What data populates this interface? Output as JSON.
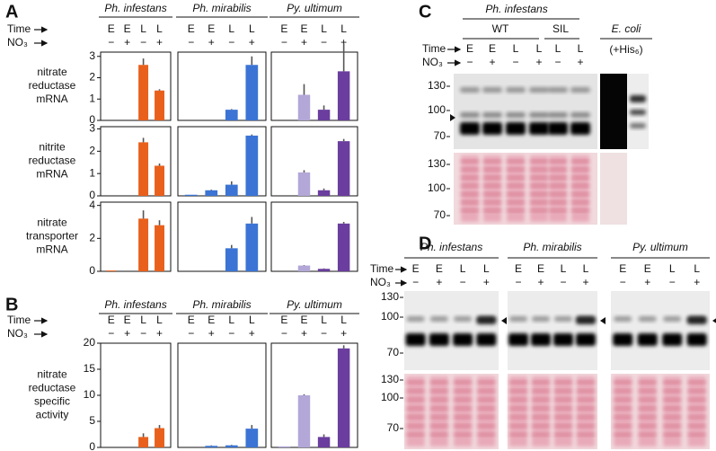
{
  "panel_a": {
    "label": "A",
    "time_label": "Time",
    "no3_label": "NO₃",
    "species": [
      "Ph. infestans",
      "Ph. mirabilis",
      "Py. ultimum"
    ],
    "time": [
      "E",
      "E",
      "L",
      "L"
    ],
    "no3": [
      "−",
      "+",
      "−",
      "+"
    ]
  },
  "panel_b": {
    "label": "B",
    "time_label": "Time",
    "no3_label": "NO₃",
    "species": [
      "Ph. infestans",
      "Ph. mirabilis",
      "Py. ultimum"
    ],
    "time": [
      "E",
      "E",
      "L",
      "L"
    ],
    "no3": [
      "−",
      "+",
      "−",
      "+"
    ]
  },
  "panel_c": {
    "label": "C",
    "species": "Ph. infestans",
    "groups": [
      "WT",
      "SIL",
      "E. coli"
    ],
    "his_tag": "(+His₆)",
    "time_label": "Time",
    "no3_label": "NO₃",
    "time": [
      "E",
      "E",
      "L",
      "L",
      "L",
      "L"
    ],
    "no3": [
      "−",
      "+",
      "−",
      "+",
      "−",
      "+"
    ],
    "markers": [
      130,
      100,
      70
    ]
  },
  "panel_d": {
    "label": "D",
    "species": [
      "Ph. infestans",
      "Ph. mirabilis",
      "Py. ultimum"
    ],
    "time_label": "Time",
    "no3_label": "NO₃",
    "time": [
      "E",
      "E",
      "L",
      "L"
    ],
    "no3": [
      "−",
      "+",
      "−",
      "+"
    ],
    "markers": [
      130,
      100,
      70
    ]
  },
  "chart_data": [
    {
      "type": "bar",
      "ylabel": [
        "nitrate",
        "reductase",
        "mRNA"
      ],
      "values": [
        0,
        0,
        2.6,
        1.4
      ],
      "errors": [
        0,
        0,
        0.3,
        0.06
      ],
      "colors": [
        "#e8601c",
        "#e8601c",
        "#e8601c",
        "#e8601c"
      ],
      "ylim": [
        0,
        3.2
      ],
      "yticks": [
        0,
        1,
        2,
        3
      ]
    },
    {
      "type": "bar",
      "values": [
        0,
        0,
        0.5,
        2.6
      ],
      "errors": [
        0,
        0,
        0.03,
        0.4
      ],
      "colors": [
        "#3b74d4",
        "#3b74d4",
        "#3b74d4",
        "#3b74d4"
      ],
      "ylim": [
        0,
        3.2
      ]
    },
    {
      "type": "bar",
      "values": [
        0,
        1.2,
        0.5,
        2.3
      ],
      "errors": [
        0,
        0.5,
        0.2,
        1.3
      ],
      "colors": [
        "#b3a7d8",
        "#b3a7d8",
        "#6a3d9e",
        "#6a3d9e"
      ],
      "ylim": [
        0,
        3.2
      ]
    },
    {
      "type": "bar",
      "ylabel": [
        "nitrite",
        "reductase",
        "mRNA"
      ],
      "values": [
        0,
        0,
        2.4,
        1.35
      ],
      "errors": [
        0,
        0,
        0.2,
        0.1
      ],
      "colors": [
        "#e8601c",
        "#e8601c",
        "#e8601c",
        "#e8601c"
      ],
      "ylim": [
        0,
        3.1
      ],
      "yticks": [
        0,
        1,
        2,
        3
      ]
    },
    {
      "type": "bar",
      "values": [
        0.05,
        0.25,
        0.5,
        2.7
      ],
      "errors": [
        0,
        0.03,
        0.15,
        0.05
      ],
      "colors": [
        "#3b74d4",
        "#3b74d4",
        "#3b74d4",
        "#3b74d4"
      ],
      "ylim": [
        0,
        3.1
      ]
    },
    {
      "type": "bar",
      "values": [
        0,
        1.05,
        0.25,
        2.45
      ],
      "errors": [
        0,
        0.1,
        0.08,
        0.1
      ],
      "colors": [
        "#b3a7d8",
        "#b3a7d8",
        "#6a3d9e",
        "#6a3d9e"
      ],
      "ylim": [
        0,
        3.1
      ]
    },
    {
      "type": "bar",
      "ylabel": [
        "nitrate",
        "transporter",
        "mRNA"
      ],
      "values": [
        0.05,
        0,
        3.2,
        2.8
      ],
      "errors": [
        0,
        0,
        0.5,
        0.3
      ],
      "colors": [
        "#e8601c",
        "#e8601c",
        "#e8601c",
        "#e8601c"
      ],
      "ylim": [
        0,
        4.2
      ],
      "yticks": [
        0,
        2,
        4
      ]
    },
    {
      "type": "bar",
      "values": [
        0,
        0,
        1.4,
        2.9
      ],
      "errors": [
        0,
        0,
        0.2,
        0.4
      ],
      "colors": [
        "#3b74d4",
        "#3b74d4",
        "#3b74d4",
        "#3b74d4"
      ],
      "ylim": [
        0,
        4.2
      ]
    },
    {
      "type": "bar",
      "values": [
        0,
        0.35,
        0.15,
        2.9
      ],
      "errors": [
        0,
        0.03,
        0.03,
        0.1
      ],
      "colors": [
        "#b3a7d8",
        "#b3a7d8",
        "#6a3d9e",
        "#6a3d9e"
      ],
      "ylim": [
        0,
        4.2
      ]
    },
    {
      "type": "bar",
      "ylabel": [
        "nitrate",
        "reductase",
        "specific",
        "activity"
      ],
      "values": [
        0,
        0,
        2,
        3.7
      ],
      "errors": [
        0,
        0,
        0.7,
        0.6
      ],
      "colors": [
        "#e8601c",
        "#e8601c",
        "#e8601c",
        "#e8601c"
      ],
      "ylim": [
        0,
        20
      ],
      "yticks": [
        0,
        5,
        10,
        15,
        20
      ]
    },
    {
      "type": "bar",
      "values": [
        0,
        0.3,
        0.4,
        3.6
      ],
      "errors": [
        0,
        0.1,
        0.1,
        0.7
      ],
      "colors": [
        "#3b74d4",
        "#3b74d4",
        "#3b74d4",
        "#3b74d4"
      ],
      "ylim": [
        0,
        20
      ]
    },
    {
      "type": "bar",
      "values": [
        0.2,
        10,
        2,
        19
      ],
      "errors": [
        0,
        0.2,
        0.5,
        0.6
      ],
      "colors": [
        "#b3a7d8",
        "#b3a7d8",
        "#6a3d9e",
        "#6a3d9e"
      ],
      "ylim": [
        0,
        20
      ]
    }
  ]
}
